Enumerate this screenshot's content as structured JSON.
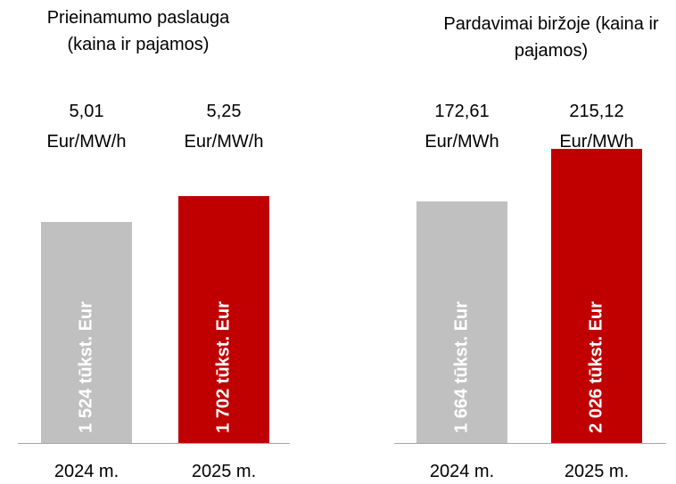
{
  "chart_data": [
    {
      "type": "bar",
      "title": "Prieinamumo paslauga (kaina ir pajamos)",
      "categories": [
        "2024 m.",
        "2025 m."
      ],
      "values": [
        1524,
        1702
      ],
      "value_labels": [
        "1 524 tūkst. Eur",
        "1 702 tūkst. Eur"
      ],
      "annotations": [
        [
          "5,01",
          "Eur/MW/h"
        ],
        [
          "5,25",
          "Eur/MW/h"
        ]
      ],
      "colors": [
        "#c0c0c0",
        "#c00000"
      ]
    },
    {
      "type": "bar",
      "title": "Pardavimai biržoje (kaina ir pajamos)",
      "categories": [
        "2024 m.",
        "2025 m."
      ],
      "values": [
        1664,
        2026
      ],
      "value_labels": [
        "1 664 tūkst. Eur",
        "2 026 tūkst. Eur"
      ],
      "annotations": [
        [
          "172,61",
          "Eur/MWh"
        ],
        [
          "215,12",
          "Eur/MWh"
        ]
      ],
      "colors": [
        "#c0c0c0",
        "#c00000"
      ]
    }
  ]
}
